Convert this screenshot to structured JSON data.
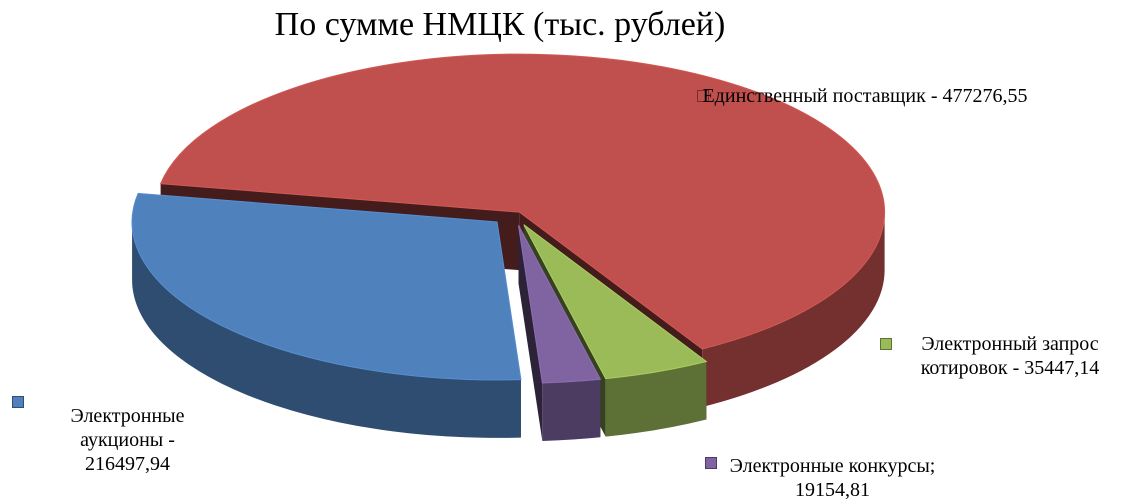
{
  "chart_data": {
    "type": "pie3d",
    "title": "По сумме НМЦК (тыс. рублей)",
    "categories": [
      "Единственный поставщик",
      "Электронный запрос котировок",
      "Электронные конкурсы",
      "Электронные аукционы"
    ],
    "values": [
      477276.55,
      35447.14,
      19154.81,
      216497.94
    ],
    "value_labels": [
      "477276,55",
      "35447,14",
      "19154,81",
      "216497,94"
    ],
    "label_separators": [
      " - ",
      " - ",
      "; ",
      " - "
    ],
    "colors": [
      "#c0504d",
      "#9bbb59",
      "#8064a2",
      "#4f81bd"
    ]
  }
}
